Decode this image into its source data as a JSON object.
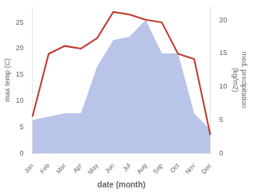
{
  "chart_data": {
    "type": "line",
    "xlabel": "date (month)",
    "ylabel": "max temp (C)",
    "y2label": "med. precipitation\n(kg/m2)",
    "categories": [
      "Jan",
      "Feb",
      "Mar",
      "Apr",
      "May",
      "Jun",
      "Jul",
      "Aug",
      "Sep",
      "Oct",
      "Nov",
      "Dec"
    ],
    "series": [
      {
        "type": "area",
        "color": "#b8c4e8",
        "axis": "y2",
        "values": [
          5,
          5.5,
          6,
          6,
          13,
          17,
          17.5,
          20,
          15,
          15,
          6,
          3.5
        ]
      },
      {
        "type": "line",
        "color": "#c0392b",
        "values": [
          7,
          19,
          20.5,
          20,
          22,
          27,
          26.5,
          25.5,
          25,
          19,
          18,
          3.5
        ]
      }
    ],
    "ylim": [
      0,
      28
    ],
    "yticks": [
      0,
      5,
      10,
      15,
      20,
      25
    ],
    "y2lim": [
      0,
      22
    ],
    "y2ticks": [
      0,
      5,
      10,
      15,
      20
    ],
    "grid": false
  }
}
